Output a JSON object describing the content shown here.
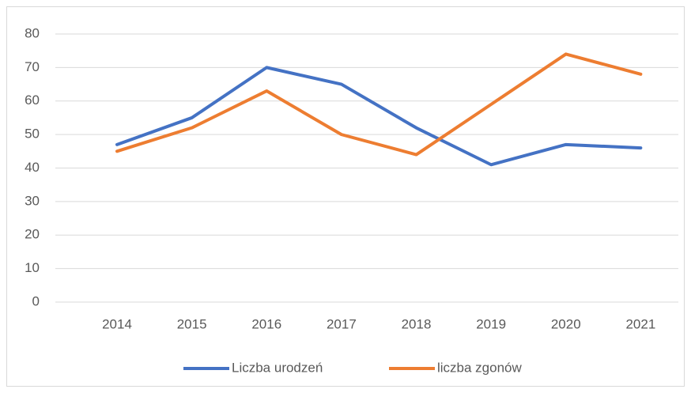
{
  "chart_data": {
    "type": "line",
    "categories": [
      "2014",
      "2015",
      "2016",
      "2017",
      "2018",
      "2019",
      "2020",
      "2021"
    ],
    "series": [
      {
        "name": "Liczba urodzeń",
        "color": "#4472c4",
        "values": [
          47,
          55,
          70,
          65,
          52,
          41,
          47,
          46
        ]
      },
      {
        "name": "liczba zgonów",
        "color": "#ed7d31",
        "values": [
          45,
          52,
          63,
          50,
          44,
          59,
          74,
          68
        ]
      }
    ],
    "ylim": [
      0,
      80
    ],
    "yticks": [
      0,
      10,
      20,
      30,
      40,
      50,
      60,
      70,
      80
    ],
    "grid": true,
    "legend": "bottom"
  }
}
